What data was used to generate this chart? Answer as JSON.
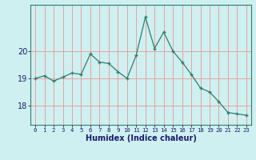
{
  "y": [
    19.0,
    19.1,
    18.9,
    19.05,
    19.2,
    19.15,
    19.9,
    19.6,
    19.55,
    19.25,
    19.0,
    19.85,
    21.25,
    20.1,
    20.7,
    20.0,
    19.6,
    19.15,
    18.65,
    18.5,
    18.15,
    17.75,
    17.7,
    17.65
  ],
  "xlabel": "Humidex (Indice chaleur)",
  "xticks": [
    0,
    1,
    2,
    3,
    4,
    5,
    6,
    7,
    8,
    9,
    10,
    11,
    12,
    13,
    14,
    15,
    16,
    17,
    18,
    19,
    20,
    21,
    22,
    23
  ],
  "yticks": [
    18,
    19,
    20
  ],
  "ylim": [
    17.3,
    21.7
  ],
  "xlim": [
    -0.5,
    23.5
  ],
  "line_color": "#2e7d6e",
  "bg_color": "#cff0f0",
  "grid_color": "#e8a0a0",
  "xlabel_color": "#1a1a6e",
  "spine_color": "#2e7d6e",
  "tick_color": "#1a1a6e"
}
